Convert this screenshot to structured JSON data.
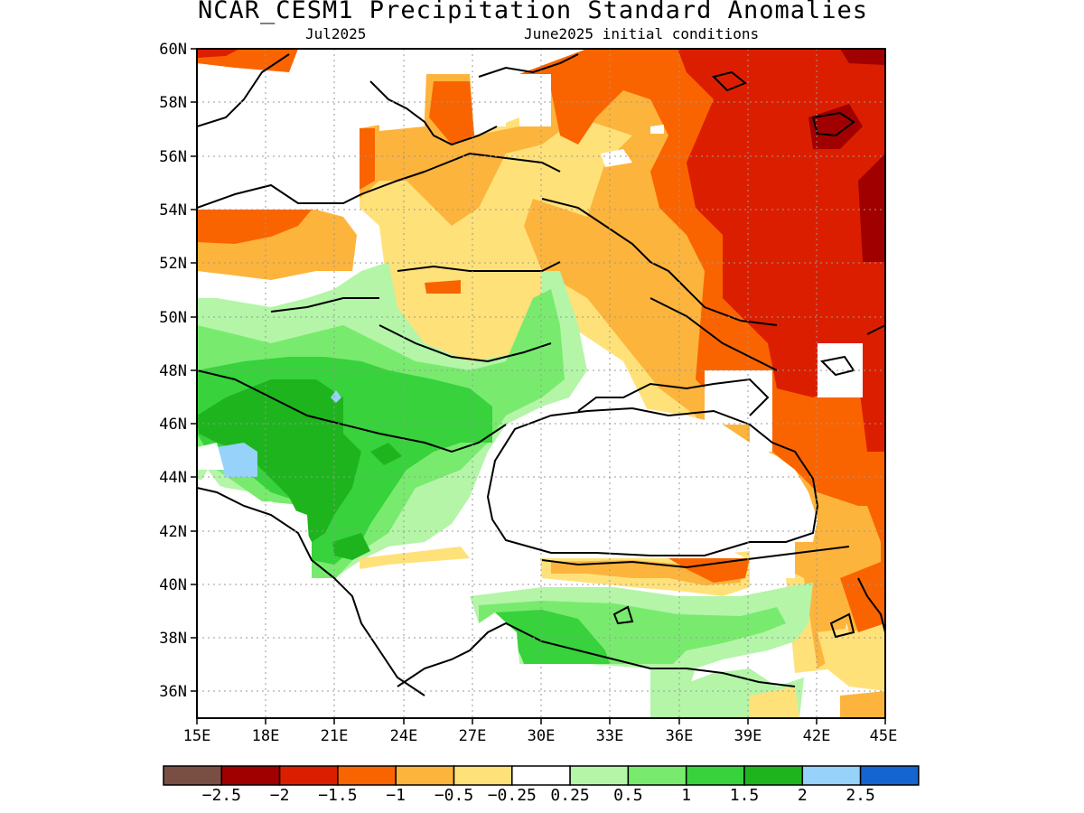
{
  "title": "NCAR_CESM1 Precipitation Standard Anomalies",
  "subtitle_left": "Jul2025",
  "subtitle_right": "June2025 initial conditions",
  "axes": {
    "x_ticks": [
      "15E",
      "18E",
      "21E",
      "24E",
      "27E",
      "30E",
      "33E",
      "36E",
      "39E",
      "42E",
      "45E"
    ],
    "y_ticks": [
      "60N",
      "58N",
      "56N",
      "54N",
      "52N",
      "50N",
      "48N",
      "46N",
      "44N",
      "42N",
      "40N",
      "38N",
      "36N"
    ],
    "lon_range": [
      15,
      45
    ],
    "lat_range": [
      35,
      60
    ],
    "grid": "dotted"
  },
  "colorbar": {
    "colors": [
      "#7a4f43",
      "#a10000",
      "#dc1e00",
      "#fa6400",
      "#fdb43c",
      "#ffe17a",
      "#ffffff",
      "#b4f5a8",
      "#78eb6e",
      "#37d23c",
      "#1eb41e",
      "#96d2fa",
      "#1464d2"
    ],
    "labels": [
      "-2.5",
      "-2",
      "-1.5",
      "-1",
      "-0.5",
      "-0.25",
      "0.25",
      "0.5",
      "1",
      "1.5",
      "2",
      "2.5"
    ]
  },
  "colors": {
    "frame": "#000000",
    "grid": "#999999"
  }
}
